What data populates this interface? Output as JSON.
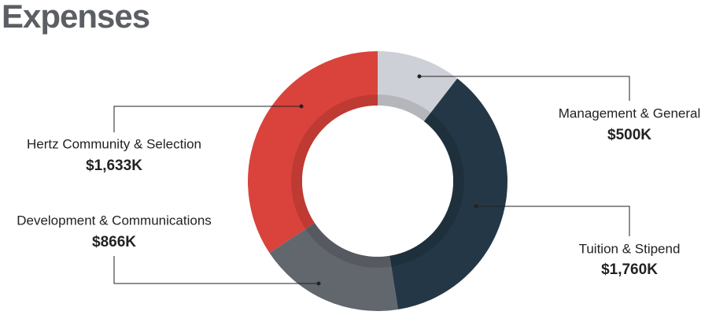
{
  "chart_data": {
    "type": "pie",
    "donut": true,
    "title": "Expenses",
    "categories": [
      "Management & General",
      "Tuition & Stipend",
      "Development & Communications",
      "Hertz Community & Selection"
    ],
    "values": [
      500,
      1760,
      866,
      1633
    ],
    "value_labels": [
      "$500K",
      "$1,760K",
      "$866K",
      "$1,633K"
    ],
    "colors": [
      "#cdd0d6",
      "#243746",
      "#62676e",
      "#d9433b"
    ]
  }
}
